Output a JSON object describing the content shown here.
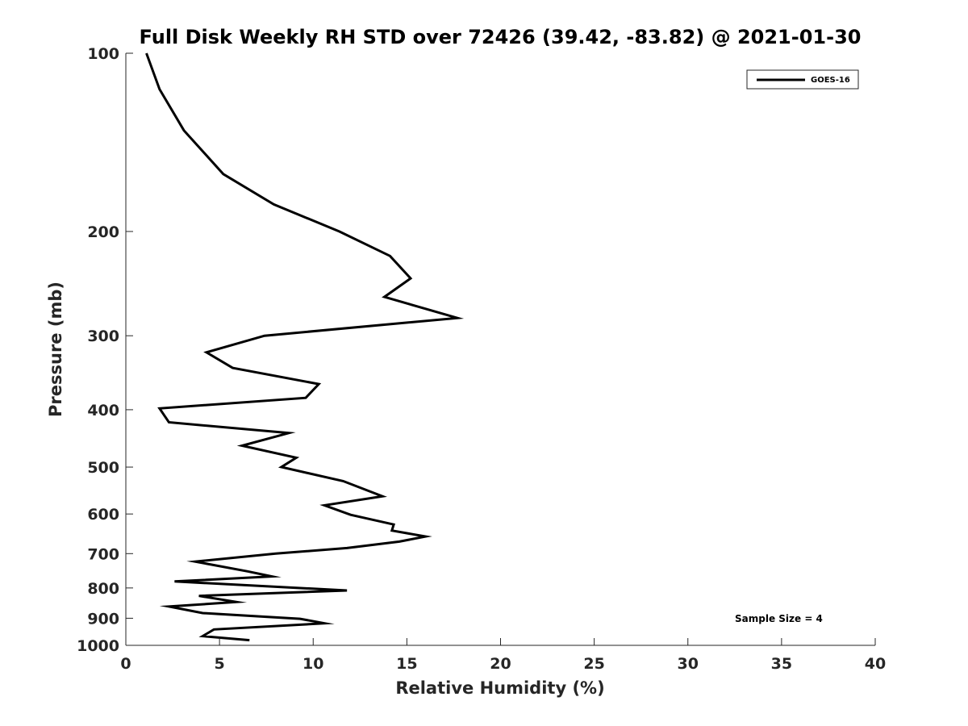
{
  "chart_data": {
    "type": "line",
    "title": "Full Disk Weekly RH STD over 72426 (39.42, -83.82) @ 2021-01-30",
    "xlabel": "Relative Humidity (%)",
    "ylabel": "Pressure (mb)",
    "xlim": [
      0,
      40
    ],
    "ylim": [
      100,
      1000
    ],
    "y_scale": "log",
    "y_reversed": true,
    "grid": false,
    "legend_position": "top-right",
    "x_ticks": [
      0,
      5,
      10,
      15,
      20,
      25,
      30,
      35,
      40
    ],
    "y_ticks": [
      100,
      200,
      300,
      400,
      500,
      600,
      700,
      800,
      900,
      1000
    ],
    "series": [
      {
        "name": "GOES-16",
        "color": "#000000",
        "x": [
          1.1,
          1.8,
          3.1,
          5.2,
          7.9,
          11.4,
          14.1,
          15.2,
          13.8,
          17.7,
          7.4,
          4.3,
          5.7,
          10.3,
          9.6,
          1.8,
          2.3,
          8.7,
          6.2,
          9.1,
          8.3,
          11.6,
          13.7,
          10.6,
          12.0,
          14.3,
          14.2,
          16.0,
          14.6,
          11.8,
          8.0,
          3.7,
          6.5,
          7.8,
          2.6,
          11.8,
          3.9,
          5.9,
          2.3,
          4.1,
          9.3,
          10.6,
          4.7,
          4.1,
          6.6
        ],
        "y": [
          100,
          115,
          135,
          160,
          180,
          200,
          220,
          240,
          258,
          280,
          300,
          320,
          340,
          362,
          382,
          398,
          420,
          438,
          460,
          482,
          500,
          528,
          560,
          580,
          602,
          625,
          640,
          655,
          668,
          685,
          700,
          722,
          750,
          765,
          780,
          808,
          825,
          845,
          860,
          882,
          902,
          918,
          940,
          965,
          980
        ]
      }
    ],
    "annotations": [
      "Sample Size = 4"
    ]
  }
}
